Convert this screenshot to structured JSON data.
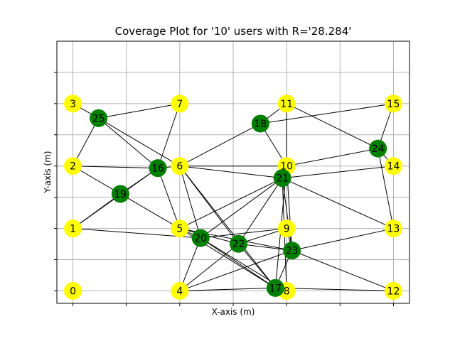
{
  "chart_data": {
    "type": "scatter",
    "title": "Coverage Plot for '10' users with R='28.284'",
    "xlabel": "X-axis (m)",
    "ylabel": "Y-axis (m)",
    "xlim": [
      -3,
      63
    ],
    "ylim": [
      -3,
      60
    ],
    "grid": true,
    "colors": {
      "base_station": "#ffff00",
      "user": "#008000",
      "edge": "#000000",
      "grid": "#b0b0b0"
    },
    "base_stations": [
      {
        "id": "0",
        "x": 0,
        "y": 0
      },
      {
        "id": "1",
        "x": 0,
        "y": 15
      },
      {
        "id": "2",
        "x": 0,
        "y": 30
      },
      {
        "id": "3",
        "x": 0,
        "y": 45
      },
      {
        "id": "4",
        "x": 20,
        "y": 0
      },
      {
        "id": "5",
        "x": 20,
        "y": 15
      },
      {
        "id": "6",
        "x": 20,
        "y": 30
      },
      {
        "id": "7",
        "x": 20,
        "y": 45
      },
      {
        "id": "8",
        "x": 40,
        "y": 0
      },
      {
        "id": "9",
        "x": 40,
        "y": 15
      },
      {
        "id": "10",
        "x": 40,
        "y": 30
      },
      {
        "id": "11",
        "x": 40,
        "y": 45
      },
      {
        "id": "12",
        "x": 60,
        "y": 0
      },
      {
        "id": "13",
        "x": 60,
        "y": 15
      },
      {
        "id": "14",
        "x": 60,
        "y": 30
      },
      {
        "id": "15",
        "x": 60,
        "y": 45
      }
    ],
    "users": [
      {
        "id": "16",
        "x": 15.9,
        "y": 29.5
      },
      {
        "id": "17",
        "x": 37.9,
        "y": 0.7
      },
      {
        "id": "18",
        "x": 35.1,
        "y": 40.2
      },
      {
        "id": "19",
        "x": 8.9,
        "y": 23.3
      },
      {
        "id": "20",
        "x": 23.9,
        "y": 12.7
      },
      {
        "id": "21",
        "x": 39.2,
        "y": 27.1
      },
      {
        "id": "22",
        "x": 31.0,
        "y": 11.3
      },
      {
        "id": "23",
        "x": 41.0,
        "y": 9.7
      },
      {
        "id": "24",
        "x": 57.1,
        "y": 34.2
      },
      {
        "id": "25",
        "x": 4.8,
        "y": 41.5
      }
    ],
    "edges": [
      [
        "3",
        "25"
      ],
      [
        "25",
        "7"
      ],
      [
        "25",
        "2"
      ],
      [
        "25",
        "16"
      ],
      [
        "25",
        "6"
      ],
      [
        "7",
        "16"
      ],
      [
        "11",
        "18"
      ],
      [
        "11",
        "10"
      ],
      [
        "11",
        "24"
      ],
      [
        "15",
        "18"
      ],
      [
        "15",
        "24"
      ],
      [
        "18",
        "10"
      ],
      [
        "18",
        "6"
      ],
      [
        "24",
        "10"
      ],
      [
        "24",
        "14"
      ],
      [
        "24",
        "13"
      ],
      [
        "2",
        "16"
      ],
      [
        "2",
        "19"
      ],
      [
        "16",
        "6"
      ],
      [
        "16",
        "19"
      ],
      [
        "16",
        "5"
      ],
      [
        "6",
        "10"
      ],
      [
        "6",
        "21"
      ],
      [
        "6",
        "20"
      ],
      [
        "6",
        "22"
      ],
      [
        "6",
        "17"
      ],
      [
        "10",
        "21"
      ],
      [
        "21",
        "14"
      ],
      [
        "21",
        "13"
      ],
      [
        "21",
        "5"
      ],
      [
        "21",
        "20"
      ],
      [
        "21",
        "22"
      ],
      [
        "21",
        "23"
      ],
      [
        "21",
        "8"
      ],
      [
        "19",
        "1"
      ],
      [
        "19",
        "5"
      ],
      [
        "1",
        "16"
      ],
      [
        "1",
        "20"
      ],
      [
        "5",
        "20"
      ],
      [
        "5",
        "22"
      ],
      [
        "5",
        "23"
      ],
      [
        "5",
        "17"
      ],
      [
        "9",
        "20"
      ],
      [
        "9",
        "22"
      ],
      [
        "9",
        "23"
      ],
      [
        "20",
        "17"
      ],
      [
        "20",
        "8"
      ],
      [
        "20",
        "4"
      ],
      [
        "22",
        "4"
      ],
      [
        "22",
        "17"
      ],
      [
        "22",
        "23"
      ],
      [
        "23",
        "13"
      ],
      [
        "23",
        "12"
      ],
      [
        "23",
        "4"
      ],
      [
        "23",
        "17"
      ],
      [
        "4",
        "17"
      ],
      [
        "17",
        "12"
      ],
      [
        "10",
        "23"
      ],
      [
        "10",
        "17"
      ]
    ]
  }
}
